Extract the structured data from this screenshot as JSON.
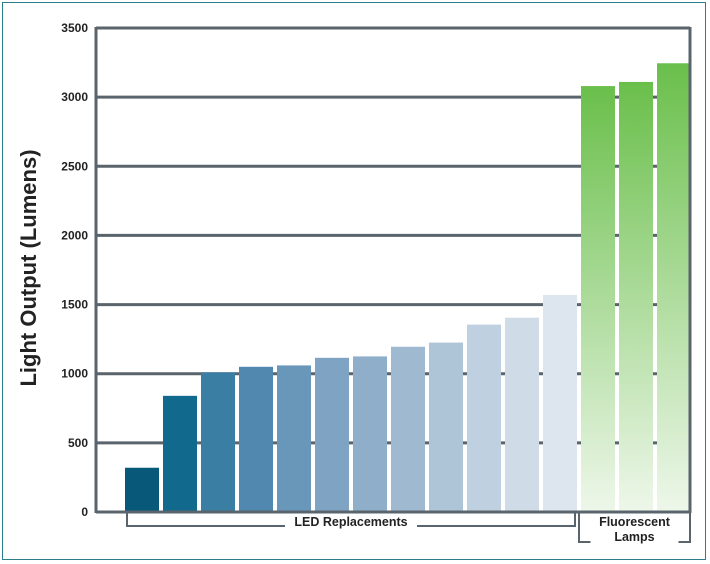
{
  "chart_data": {
    "type": "bar",
    "ylabel": "Light Output (Lumens)",
    "ylim": [
      0,
      3500
    ],
    "yticks": [
      0,
      500,
      1000,
      1500,
      2000,
      2500,
      3000,
      3500
    ],
    "grid": true,
    "series": [
      {
        "values": [
          320,
          840,
          1010,
          1050,
          1060,
          1115,
          1125,
          1195,
          1225,
          1355,
          1405,
          1570,
          3080,
          3110,
          3245
        ]
      }
    ],
    "groups": [
      {
        "label": "LED Replacements",
        "start": 0,
        "end": 11
      },
      {
        "label": "Fluorescent Lamps",
        "lines": [
          "Fluorescent",
          "Lamps"
        ],
        "start": 12,
        "end": 14
      }
    ],
    "colors": {
      "led_bars": [
        "#08587a",
        "#11698e",
        "#3b7ea3",
        "#5188af",
        "#6897ba",
        "#7fa3c2",
        "#8eaec9",
        "#9eb9d0",
        "#aec4d7",
        "#bfd0e0",
        "#cfdbe7",
        "#dde5ee"
      ],
      "fluorescent_top": "#6abf4b",
      "fluorescent_bottom": "#eef7ea",
      "gridline": "#5a646c",
      "frame": "#2a7f8a"
    }
  }
}
